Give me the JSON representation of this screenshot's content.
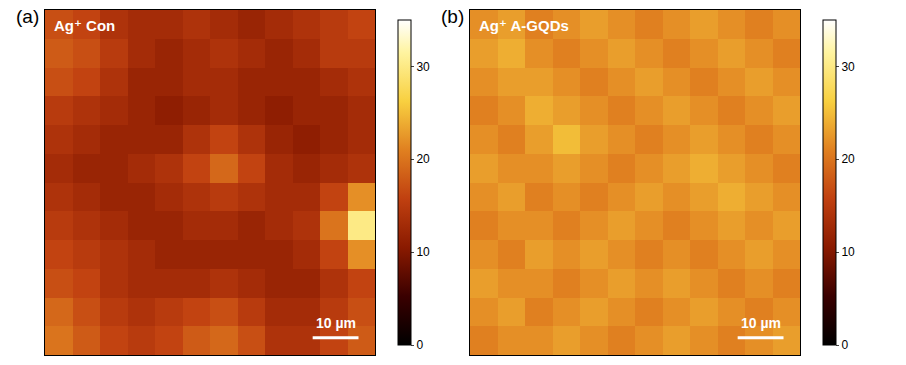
{
  "chart_data": [
    {
      "type": "heatmap",
      "panel": "(a)",
      "title": "Ag⁺ Con",
      "xlim": [
        0,
        72
      ],
      "ylim": [
        0,
        72
      ],
      "tick_labels": false,
      "scale_bar": {
        "length": 10,
        "label": "10 µm"
      },
      "color_range": [
        0,
        35
      ],
      "color_ticks": [
        0,
        10,
        20,
        30
      ],
      "cells": [
        [
          17,
          16,
          14,
          13,
          13,
          14,
          13,
          12,
          13,
          14,
          15,
          16
        ],
        [
          18,
          17,
          15,
          13,
          12,
          13,
          14,
          13,
          12,
          13,
          15,
          15
        ],
        [
          17,
          16,
          14,
          12,
          12,
          13,
          13,
          12,
          12,
          12,
          13,
          14
        ],
        [
          15,
          14,
          13,
          12,
          11,
          12,
          13,
          12,
          11,
          12,
          12,
          13
        ],
        [
          14,
          13,
          12,
          12,
          12,
          14,
          16,
          14,
          12,
          11,
          12,
          13
        ],
        [
          13,
          12,
          12,
          13,
          14,
          16,
          19,
          16,
          13,
          12,
          13,
          14
        ],
        [
          14,
          13,
          12,
          12,
          13,
          14,
          15,
          14,
          13,
          13,
          16,
          22
        ],
        [
          15,
          14,
          13,
          12,
          12,
          13,
          13,
          12,
          13,
          14,
          20,
          30
        ],
        [
          16,
          15,
          14,
          13,
          12,
          12,
          12,
          12,
          12,
          13,
          16,
          22
        ],
        [
          17,
          16,
          14,
          13,
          13,
          13,
          14,
          13,
          12,
          12,
          14,
          16
        ],
        [
          19,
          17,
          15,
          14,
          15,
          16,
          17,
          15,
          13,
          13,
          15,
          17
        ],
        [
          20,
          18,
          16,
          15,
          16,
          18,
          19,
          17,
          14,
          14,
          16,
          18
        ]
      ]
    },
    {
      "type": "heatmap",
      "panel": "(b)",
      "title": "Ag⁺ A-GQDs",
      "xlim": [
        0,
        72
      ],
      "ylim": [
        0,
        72
      ],
      "tick_labels": false,
      "scale_bar": {
        "length": 10,
        "label": "10 µm"
      },
      "color_range": [
        0,
        35
      ],
      "color_ticks": [
        0,
        10,
        20,
        30
      ],
      "cells": [
        [
          22,
          23,
          21,
          22,
          23,
          22,
          21,
          22,
          23,
          22,
          21,
          22
        ],
        [
          23,
          24,
          22,
          21,
          22,
          23,
          22,
          21,
          22,
          23,
          22,
          21
        ],
        [
          22,
          23,
          23,
          22,
          21,
          22,
          23,
          22,
          21,
          22,
          23,
          22
        ],
        [
          21,
          22,
          24,
          23,
          22,
          21,
          22,
          23,
          22,
          21,
          22,
          23
        ],
        [
          22,
          21,
          23,
          25,
          23,
          22,
          21,
          22,
          23,
          22,
          21,
          22
        ],
        [
          23,
          22,
          22,
          23,
          22,
          21,
          22,
          23,
          24,
          23,
          22,
          21
        ],
        [
          22,
          23,
          21,
          22,
          21,
          22,
          23,
          22,
          23,
          24,
          23,
          22
        ],
        [
          21,
          22,
          22,
          21,
          22,
          23,
          22,
          21,
          22,
          23,
          22,
          23
        ],
        [
          22,
          21,
          23,
          22,
          23,
          22,
          21,
          22,
          21,
          22,
          23,
          22
        ],
        [
          23,
          22,
          22,
          21,
          22,
          23,
          22,
          23,
          22,
          21,
          22,
          21
        ],
        [
          22,
          23,
          21,
          22,
          23,
          22,
          21,
          22,
          23,
          22,
          21,
          22
        ],
        [
          21,
          22,
          22,
          23,
          22,
          21,
          22,
          23,
          22,
          21,
          22,
          23
        ]
      ]
    }
  ]
}
